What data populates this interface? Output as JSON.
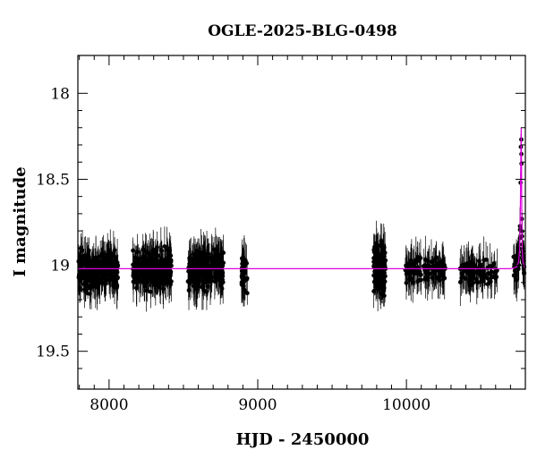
{
  "chart_data": {
    "type": "scatter",
    "title": "OGLE-2025-BLG-0498",
    "xlabel": "HJD - 2450000",
    "ylabel": "I magnitude",
    "xlim": [
      7790,
      10800
    ],
    "ylim": [
      19.72,
      17.78
    ],
    "y_inverted": true,
    "xticks_major": [
      8000,
      9000,
      10000
    ],
    "xtick_labels": [
      "8000",
      "9000",
      "10000"
    ],
    "yticks_major": [
      18,
      18.5,
      19,
      19.5
    ],
    "ytick_labels": [
      "18",
      "18.5",
      "19",
      "19.5"
    ],
    "grid": false,
    "legend": "none",
    "colors": {
      "points": "#000000",
      "model": "#e000e0"
    },
    "baseline_mag": 19.02,
    "peak_mag": 18.13,
    "peak_time": 10772,
    "observing_seasons": [
      {
        "x_start": 7795,
        "x_end": 8060,
        "mag_center": 19.03,
        "mag_scatter": 0.09,
        "n_points": 260
      },
      {
        "x_start": 8160,
        "x_end": 8420,
        "mag_center": 19.02,
        "mag_scatter": 0.09,
        "n_points": 250
      },
      {
        "x_start": 8530,
        "x_end": 8770,
        "mag_center": 19.02,
        "mag_scatter": 0.09,
        "n_points": 240
      },
      {
        "x_start": 8890,
        "x_end": 8930,
        "mag_center": 19.05,
        "mag_scatter": 0.08,
        "n_points": 40
      },
      {
        "x_start": 9780,
        "x_end": 9860,
        "mag_center": 19.02,
        "mag_scatter": 0.11,
        "n_points": 150
      },
      {
        "x_start": 9990,
        "x_end": 10260,
        "mag_center": 19.03,
        "mag_scatter": 0.07,
        "n_points": 110
      },
      {
        "x_start": 10360,
        "x_end": 10610,
        "mag_center": 19.04,
        "mag_scatter": 0.06,
        "n_points": 90
      },
      {
        "x_start": 10720,
        "x_end": 10795,
        "mag_center": 19.0,
        "mag_scatter": 0.05,
        "n_points": 60
      }
    ],
    "model_curve": [
      [
        7790,
        19.02
      ],
      [
        10700,
        19.02
      ],
      [
        10740,
        19.01
      ],
      [
        10755,
        18.98
      ],
      [
        10762,
        18.9
      ],
      [
        10766,
        18.7
      ],
      [
        10769,
        18.4
      ],
      [
        10772,
        18.2
      ],
      [
        10774,
        18.4
      ],
      [
        10776,
        18.7
      ],
      [
        10779,
        18.9
      ],
      [
        10784,
        18.98
      ],
      [
        10795,
        19.01
      ],
      [
        10800,
        19.02
      ]
    ]
  }
}
